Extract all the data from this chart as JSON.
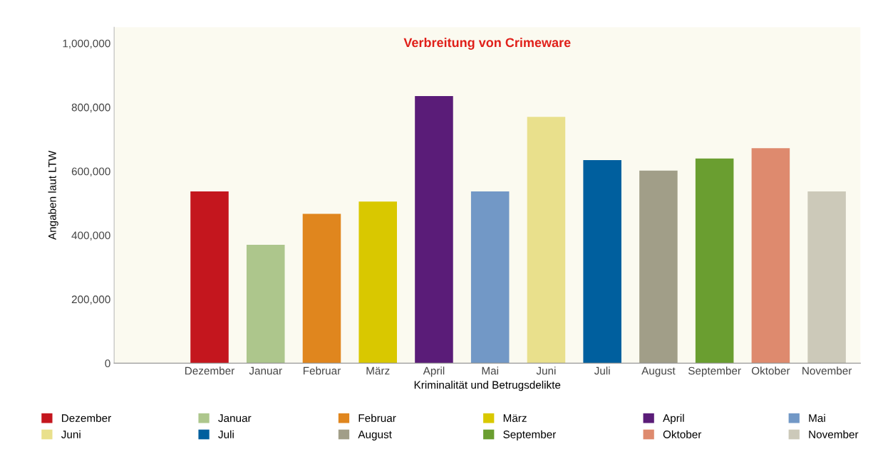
{
  "chart_data": {
    "type": "bar",
    "title": "Verbreitung von Crimeware",
    "xlabel": "Kriminalität und Betrugsdelikte",
    "ylabel": "Angaben laut LTW",
    "categories": [
      "Dezember",
      "Januar",
      "Februar",
      "März",
      "April",
      "Mai",
      "Juni",
      "Juli",
      "August",
      "September",
      "Oktober",
      "November"
    ],
    "series": [
      {
        "name": "Dezember",
        "color": "#c4161e",
        "values": [
          537000,
          null,
          null,
          null,
          null,
          null,
          null,
          null,
          null,
          null,
          null,
          null
        ]
      },
      {
        "name": "Januar",
        "color": "#adc68c",
        "values": [
          null,
          370000,
          null,
          null,
          null,
          null,
          null,
          null,
          null,
          null,
          null,
          null
        ]
      },
      {
        "name": "Februar",
        "color": "#e0861e",
        "values": [
          null,
          null,
          467000,
          null,
          null,
          null,
          null,
          null,
          null,
          null,
          null,
          null
        ]
      },
      {
        "name": "März",
        "color": "#d9c800",
        "values": [
          null,
          null,
          null,
          505000,
          null,
          null,
          null,
          null,
          null,
          null,
          null,
          null
        ]
      },
      {
        "name": "April",
        "color": "#5a1c78",
        "values": [
          null,
          null,
          null,
          null,
          835000,
          null,
          null,
          null,
          null,
          null,
          null,
          null
        ]
      },
      {
        "name": "Mai",
        "color": "#7298c6",
        "values": [
          null,
          null,
          null,
          null,
          null,
          537000,
          null,
          null,
          null,
          null,
          null,
          null
        ]
      },
      {
        "name": "Juni",
        "color": "#e9e08c",
        "values": [
          null,
          null,
          null,
          null,
          null,
          null,
          770000,
          null,
          null,
          null,
          null,
          null
        ]
      },
      {
        "name": "Juli",
        "color": "#005f9e",
        "values": [
          null,
          null,
          null,
          null,
          null,
          null,
          null,
          635000,
          null,
          null,
          null,
          null
        ]
      },
      {
        "name": "August",
        "color": "#a19e88",
        "values": [
          null,
          null,
          null,
          null,
          null,
          null,
          null,
          null,
          602000,
          null,
          null,
          null
        ]
      },
      {
        "name": "September",
        "color": "#6a9e30",
        "values": [
          null,
          null,
          null,
          null,
          null,
          null,
          null,
          null,
          null,
          640000,
          null,
          null
        ]
      },
      {
        "name": "Oktober",
        "color": "#de8a6e",
        "values": [
          null,
          null,
          null,
          null,
          null,
          null,
          null,
          null,
          null,
          null,
          672000,
          null
        ]
      },
      {
        "name": "November",
        "color": "#ccc9b9",
        "values": [
          null,
          null,
          null,
          null,
          null,
          null,
          null,
          null,
          null,
          null,
          null,
          537000
        ]
      }
    ],
    "ylim": [
      0,
      1050000
    ],
    "yticks": [
      {
        "value": 0,
        "label": "0"
      },
      {
        "value": 200000,
        "label": "200,000"
      },
      {
        "value": 400000,
        "label": "400,000"
      },
      {
        "value": 600000,
        "label": "600,000"
      },
      {
        "value": 800000,
        "label": "800,000"
      },
      {
        "value": 1000000,
        "label": "1,000,000"
      }
    ],
    "grid": false,
    "legend": "bottom"
  }
}
